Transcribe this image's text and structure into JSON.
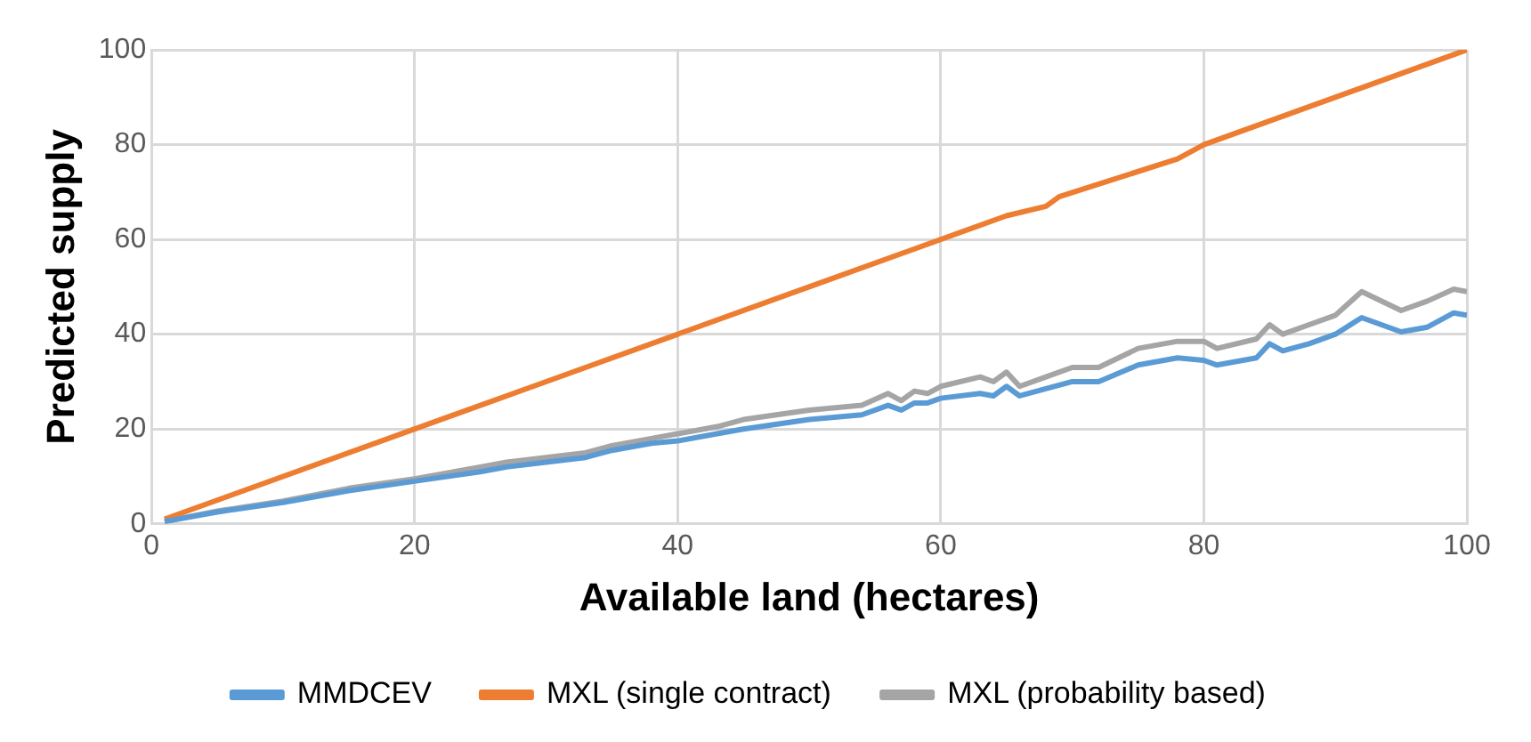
{
  "chart_data": {
    "type": "line",
    "xlabel": "Available land (hectares)",
    "ylabel": "Predicted supply",
    "xlim": [
      0,
      100
    ],
    "ylim": [
      0,
      100
    ],
    "xticks": [
      0,
      20,
      40,
      60,
      80,
      100
    ],
    "yticks": [
      0,
      20,
      40,
      60,
      80,
      100
    ],
    "grid": true,
    "legend": "bottom",
    "marker": "none",
    "line_style": "solid",
    "series": [
      {
        "name": "MMDCEV",
        "color": "#5b9bd5",
        "x": [
          1,
          5,
          10,
          15,
          20,
          25,
          27,
          30,
          33,
          35,
          38,
          40,
          43,
          45,
          50,
          54,
          56,
          57,
          58,
          59,
          60,
          63,
          64,
          65,
          66,
          68,
          70,
          72,
          75,
          78,
          80,
          81,
          84,
          85,
          86,
          88,
          90,
          92,
          95,
          97,
          99,
          100
        ],
        "values": [
          0.5,
          2.5,
          4.5,
          7,
          9,
          11,
          12,
          13,
          14,
          15.5,
          17,
          17.5,
          19,
          20,
          22,
          23,
          25,
          24,
          25.5,
          25.5,
          26.5,
          27.5,
          27,
          29,
          27,
          28.5,
          30,
          30,
          33.5,
          35,
          34.5,
          33.5,
          35,
          38,
          36.5,
          38,
          40,
          43.5,
          40.5,
          41.5,
          44.5,
          44
        ]
      },
      {
        "name": "MXL (single contract)",
        "color": "#ed7d31",
        "x": [
          1,
          30,
          50,
          65,
          68,
          69,
          78,
          80,
          100
        ],
        "values": [
          1,
          30,
          50,
          65,
          67,
          69,
          77,
          80,
          100
        ]
      },
      {
        "name": "MXL (probability based)",
        "color": "#a5a5a5",
        "x": [
          1,
          5,
          10,
          15,
          20,
          25,
          27,
          30,
          33,
          35,
          38,
          40,
          43,
          45,
          50,
          54,
          56,
          57,
          58,
          59,
          60,
          63,
          64,
          65,
          66,
          68,
          70,
          72,
          75,
          78,
          80,
          81,
          84,
          85,
          86,
          88,
          90,
          92,
          95,
          97,
          99,
          100
        ],
        "values": [
          0.5,
          2.7,
          4.8,
          7.5,
          9.5,
          12,
          13,
          14,
          15,
          16.5,
          18,
          19,
          20.5,
          22,
          24,
          25,
          27.5,
          26,
          28,
          27.5,
          29,
          31,
          30,
          32,
          29,
          31,
          33,
          33,
          37,
          38.5,
          38.5,
          37,
          39,
          42,
          40,
          42,
          44,
          49,
          45,
          47,
          49.5,
          49
        ]
      }
    ]
  }
}
